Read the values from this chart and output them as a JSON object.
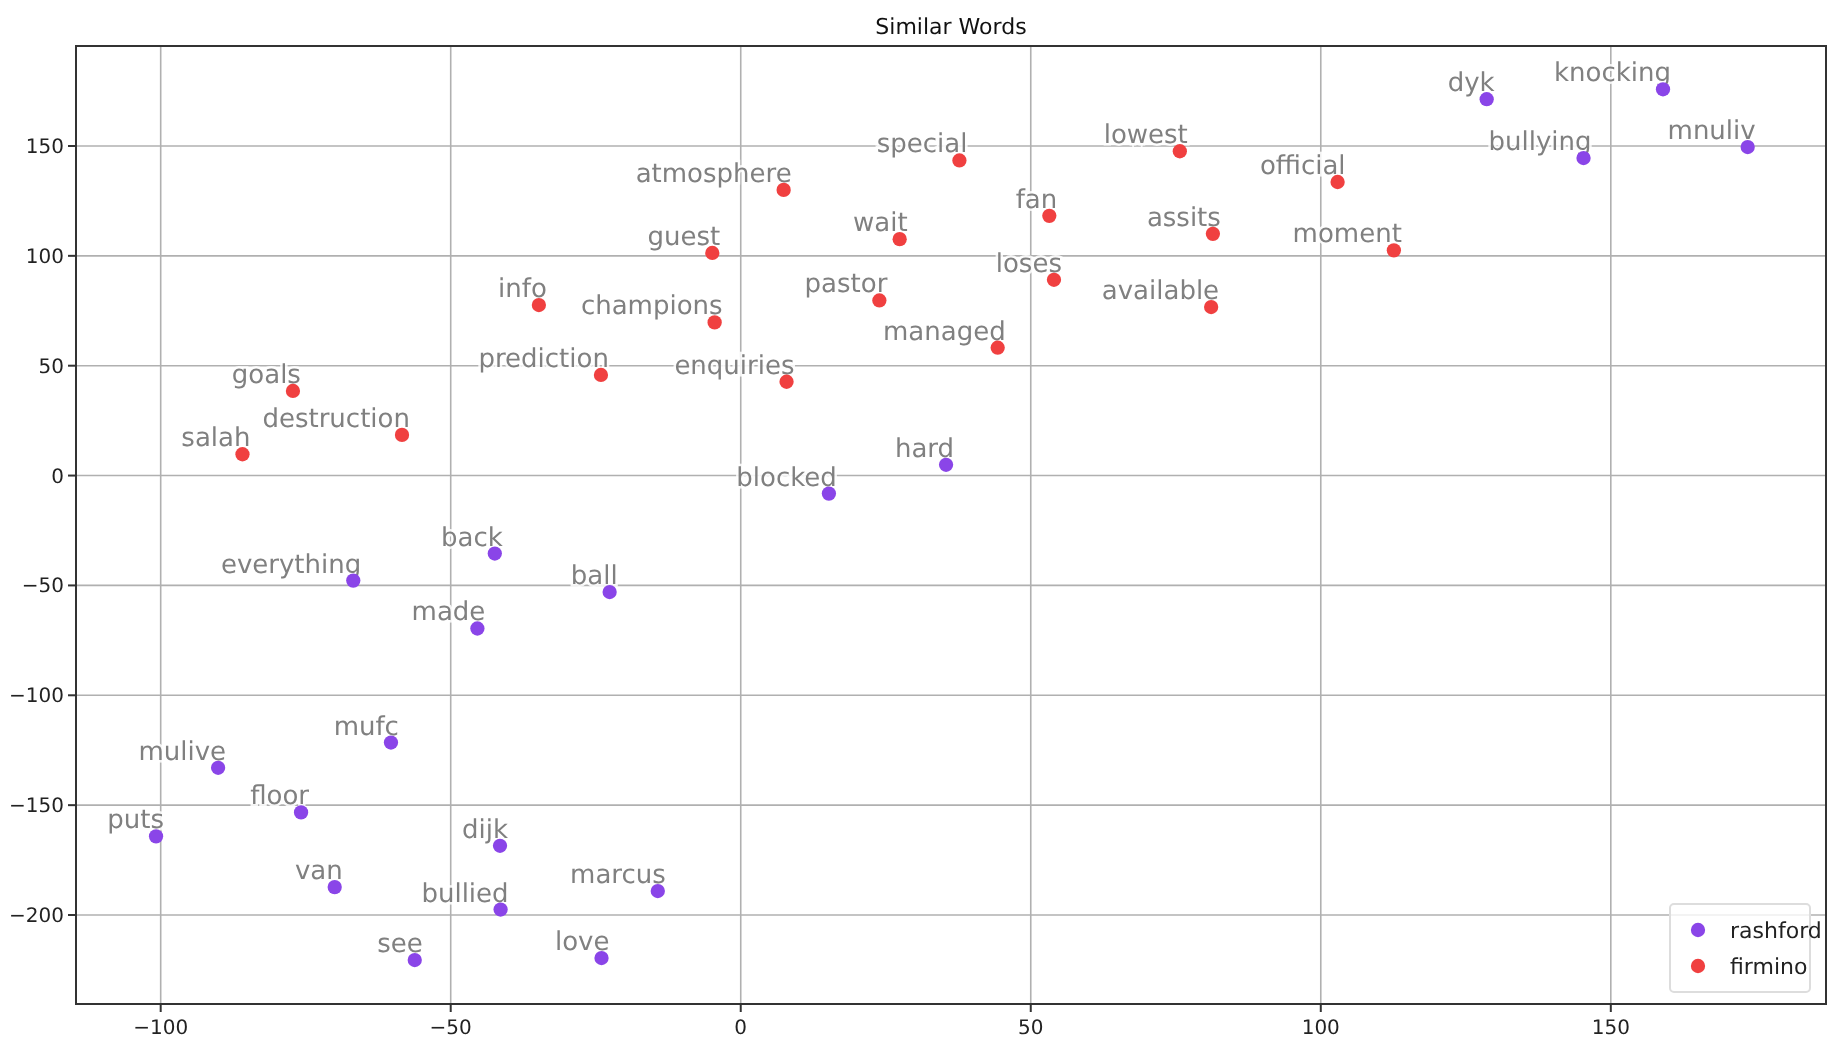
{
  "chart_data": {
    "type": "scatter",
    "title": "Similar Words",
    "xlim": [
      -114.6,
      187.1
    ],
    "ylim": [
      -240.5,
      195.5
    ],
    "xticks": [
      {
        "value": -100,
        "label": "−100"
      },
      {
        "value": -50,
        "label": "−50"
      },
      0,
      50,
      100,
      150
    ],
    "yticks": [
      {
        "value": -200,
        "label": "−200"
      },
      {
        "value": -150,
        "label": "−150"
      },
      {
        "value": -100,
        "label": "−100"
      },
      {
        "value": -50,
        "label": "−50"
      },
      0,
      50,
      100,
      150
    ],
    "grid": true,
    "legend": "bottom right",
    "marker": "circle",
    "series": [
      {
        "name": "rashford",
        "color": "#8a45e8",
        "x": [
          128.6,
          159.0,
          145.3,
          173.6,
          35.4,
          15.2,
          -42.4,
          -66.8,
          -22.6,
          -45.4,
          -60.3,
          -90.1,
          -75.8,
          -100.8,
          -41.5,
          -70,
          -14.3,
          -41.4,
          -56.2,
          -24
        ],
        "values": [
          171.3,
          175.8,
          144.5,
          149.5,
          4.9,
          -8.2,
          -35.5,
          -47.8,
          -53,
          -69.6,
          -121.5,
          -133,
          -153.3,
          -164.2,
          -168.5,
          -187.3,
          -189.1,
          -197.5,
          -220.5,
          -219.6
        ]
      },
      {
        "name": "firmino",
        "color": "#f04040",
        "x": [
          7.4,
          -4.9,
          27.4,
          37.7,
          -34.8,
          -4.5,
          23.9,
          -24.1,
          7.9,
          -77.2,
          -58.4,
          -85.9,
          75.7,
          102.9,
          53.2,
          81.4,
          112.6,
          54.0,
          81.1,
          44.3
        ],
        "values": [
          130,
          101.3,
          107.6,
          143.4,
          77.6,
          69.7,
          79.7,
          45.8,
          42.7,
          38.5,
          18.5,
          9.7,
          147.6,
          133.6,
          118.2,
          110,
          102.5,
          89.1,
          76.7,
          58.2
        ]
      }
    ],
    "annotations": [
      {
        "text": "dyk",
        "x": 128.6,
        "y": 171.3
      },
      {
        "text": "knocking",
        "x": 159.0,
        "y": 175.8
      },
      {
        "text": "bullying",
        "x": 145.3,
        "y": 144.5
      },
      {
        "text": "mnuliv",
        "x": 173.6,
        "y": 149.5
      },
      {
        "text": "hard",
        "x": 35.4,
        "y": 4.9
      },
      {
        "text": "blocked",
        "x": 15.2,
        "y": -8.2
      },
      {
        "text": "back",
        "x": -42.4,
        "y": -35.5
      },
      {
        "text": "everything",
        "x": -66.8,
        "y": -47.8
      },
      {
        "text": "ball",
        "x": -22.6,
        "y": -53
      },
      {
        "text": "made",
        "x": -45.4,
        "y": -69.6
      },
      {
        "text": "mufc",
        "x": -60.3,
        "y": -121.5
      },
      {
        "text": "mulive",
        "x": -90.1,
        "y": -133
      },
      {
        "text": "floor",
        "x": -75.8,
        "y": -153.3
      },
      {
        "text": "puts",
        "x": -100.8,
        "y": -164.2
      },
      {
        "text": "dijk",
        "x": -41.5,
        "y": -168.5
      },
      {
        "text": "van",
        "x": -70,
        "y": -187.3
      },
      {
        "text": "marcus",
        "x": -14.3,
        "y": -189.1
      },
      {
        "text": "bullied",
        "x": -41.4,
        "y": -197.5
      },
      {
        "text": "see",
        "x": -56.2,
        "y": -220.5
      },
      {
        "text": "love",
        "x": -24,
        "y": -219.6
      },
      {
        "text": "atmosphere",
        "x": 7.4,
        "y": 130
      },
      {
        "text": "guest",
        "x": -4.9,
        "y": 101.3
      },
      {
        "text": "wait",
        "x": 27.4,
        "y": 107.6
      },
      {
        "text": "special",
        "x": 37.7,
        "y": 143.4
      },
      {
        "text": "info",
        "x": -34.8,
        "y": 77.6
      },
      {
        "text": "champions",
        "x": -4.5,
        "y": 69.7
      },
      {
        "text": "pastor",
        "x": 23.9,
        "y": 79.7
      },
      {
        "text": "prediction",
        "x": -24.1,
        "y": 45.8
      },
      {
        "text": "enquiries",
        "x": 7.9,
        "y": 42.7
      },
      {
        "text": "goals",
        "x": -77.2,
        "y": 38.5
      },
      {
        "text": "destruction",
        "x": -58.4,
        "y": 18.5
      },
      {
        "text": "salah",
        "x": -85.9,
        "y": 9.7
      },
      {
        "text": "lowest",
        "x": 75.7,
        "y": 147.6
      },
      {
        "text": "official",
        "x": 102.9,
        "y": 133.6
      },
      {
        "text": "fan",
        "x": 53.2,
        "y": 118.2
      },
      {
        "text": "assits",
        "x": 81.4,
        "y": 110
      },
      {
        "text": "moment",
        "x": 112.6,
        "y": 102.5
      },
      {
        "text": "loses",
        "x": 54.0,
        "y": 89.1
      },
      {
        "text": "available",
        "x": 81.1,
        "y": 76.7
      },
      {
        "text": "managed",
        "x": 44.3,
        "y": 58.2
      }
    ]
  }
}
